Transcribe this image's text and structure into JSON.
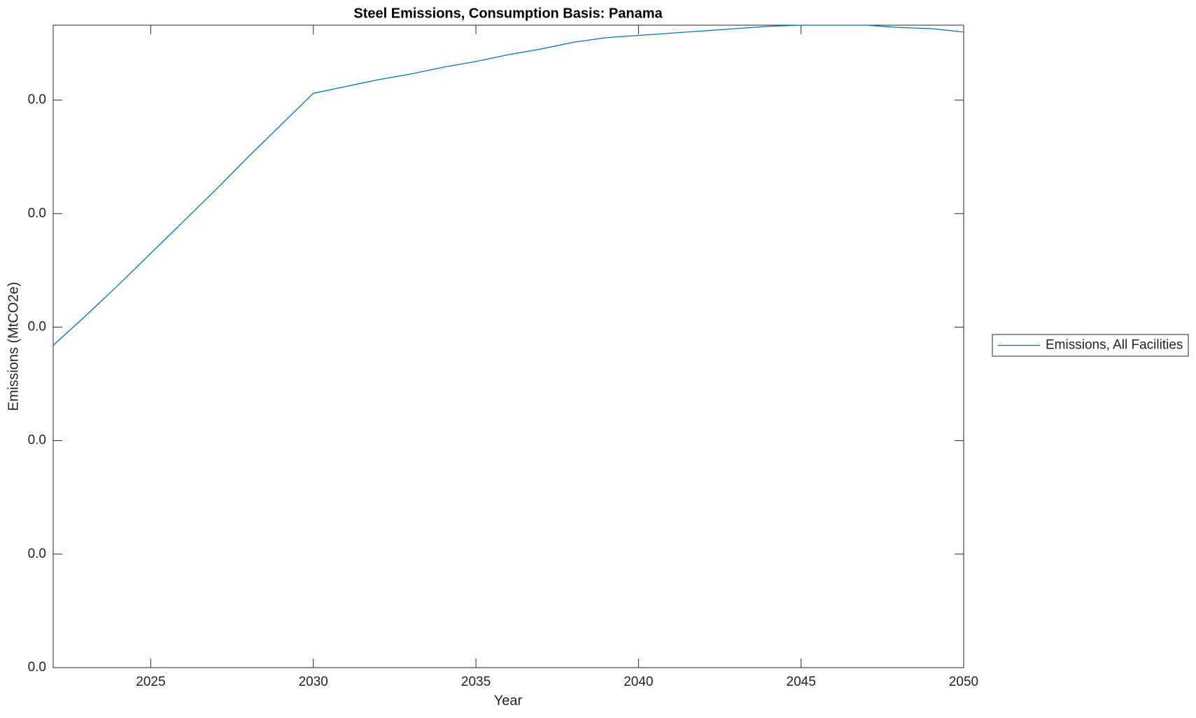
{
  "chart_data": {
    "type": "line",
    "title": "Steel Emissions, Consumption Basis: Panama",
    "x_label": "Year",
    "y_label": "Emissions (MtCO2e)",
    "x": [
      2022,
      2023,
      2024,
      2025,
      2026,
      2027,
      2028,
      2029,
      2030,
      2031,
      2032,
      2033,
      2034,
      2035,
      2036,
      2037,
      2038,
      2039,
      2040,
      2041,
      2042,
      2043,
      2044,
      2045,
      2046,
      2047,
      2048,
      2049,
      2050
    ],
    "series": [
      {
        "name": "Emissions, All Facilities",
        "color": "#0072bd",
        "values": [
          0.0284,
          0.031,
          0.0337,
          0.0365,
          0.0393,
          0.0421,
          0.045,
          0.0478,
          0.0506,
          0.0512,
          0.0518,
          0.0523,
          0.0529,
          0.0534,
          0.054,
          0.0545,
          0.0551,
          0.0555,
          0.0557,
          0.0559,
          0.0561,
          0.0563,
          0.0565,
          0.0566,
          0.0566,
          0.0566,
          0.0564,
          0.0563,
          0.056
        ]
      }
    ],
    "xlim": [
      2022,
      2050
    ],
    "xticks": [
      2025,
      2030,
      2035,
      2040,
      2045,
      2050
    ],
    "ylim": [
      0,
      0.0566
    ],
    "yticks": [
      {
        "value": 0,
        "label": "0.0"
      },
      {
        "value": 0.01,
        "label": "0.0"
      },
      {
        "value": 0.02,
        "label": "0.0"
      },
      {
        "value": 0.03,
        "label": "0.0"
      },
      {
        "value": 0.04,
        "label": "0.0"
      },
      {
        "value": 0.05,
        "label": "0.0"
      }
    ],
    "grid": false,
    "legend_position": "outside-right"
  }
}
